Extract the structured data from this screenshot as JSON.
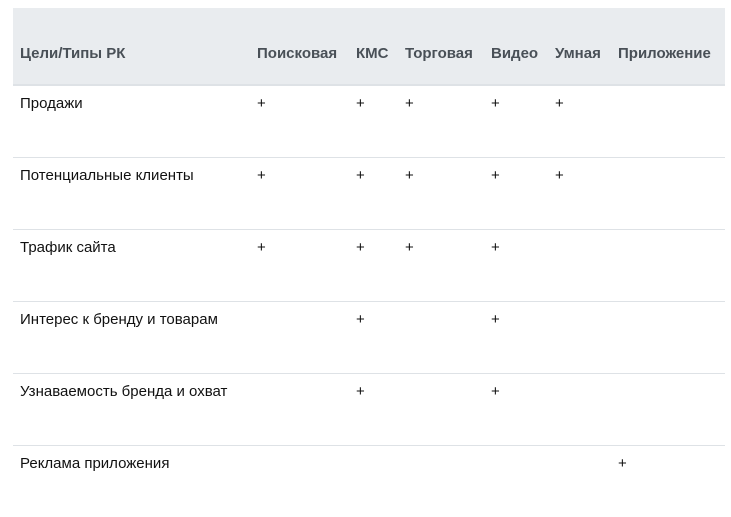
{
  "table": {
    "headers": [
      "Цели/Типы РК",
      "Поисковая",
      "КМС",
      "Торговая",
      "Видео",
      "Умная",
      "Приложение"
    ],
    "rows": [
      [
        "Продажи",
        "+",
        "+",
        "+",
        "+",
        "+",
        ""
      ],
      [
        "Потенциальные клиенты",
        "+",
        "+",
        "+",
        "+",
        "+",
        ""
      ],
      [
        "Трафик сайта",
        "+",
        "+",
        "+",
        "+",
        "",
        ""
      ],
      [
        "Интерес к бренду и товарам",
        "",
        "+",
        "",
        "+",
        "",
        ""
      ],
      [
        "Узнаваемость бренда и охват",
        "",
        "+",
        "",
        "+",
        "",
        ""
      ],
      [
        "Реклама приложения",
        "",
        "",
        "",
        "",
        "",
        "+"
      ]
    ]
  }
}
